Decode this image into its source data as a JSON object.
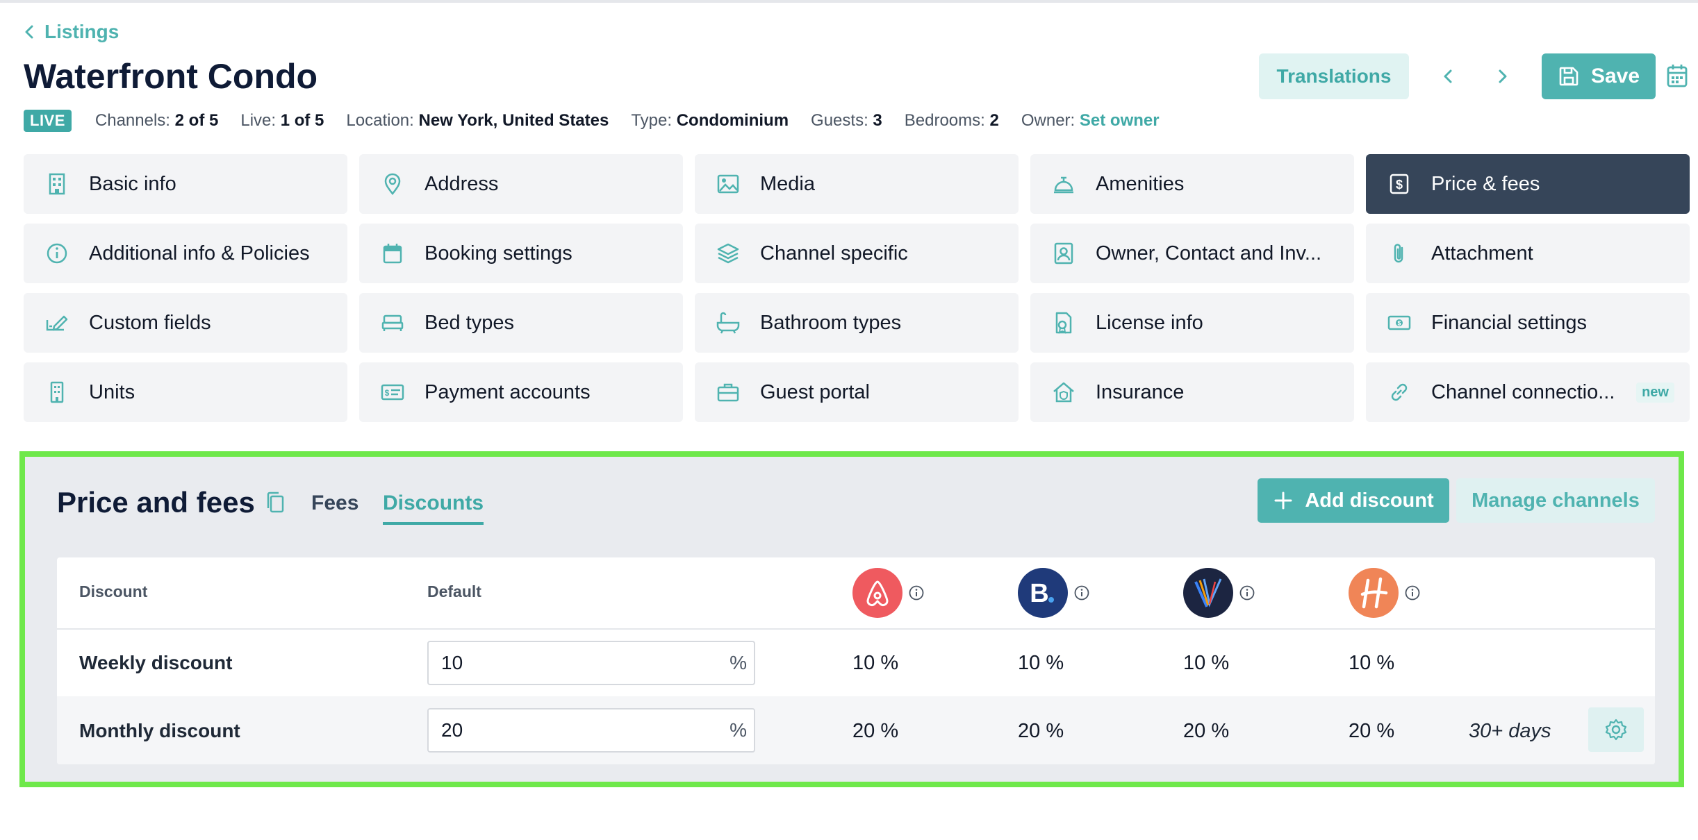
{
  "breadcrumb": {
    "back_label": "Listings"
  },
  "listing": {
    "title": "Waterfront Condo"
  },
  "meta": {
    "status_badge": "LIVE",
    "channels_label": "Channels:",
    "channels_value": "2 of 5",
    "live_label": "Live:",
    "live_value": "1 of 5",
    "location_label": "Location:",
    "location_value": "New York, United States",
    "type_label": "Type:",
    "type_value": "Condominium",
    "guests_label": "Guests:",
    "guests_value": "3",
    "bedrooms_label": "Bedrooms:",
    "bedrooms_value": "2",
    "owner_label": "Owner:",
    "owner_value": "Set owner"
  },
  "header_actions": {
    "translations_label": "Translations",
    "save_label": "Save"
  },
  "tiles": [
    {
      "label": "Basic info",
      "icon": "building-icon"
    },
    {
      "label": "Address",
      "icon": "map-pin-icon"
    },
    {
      "label": "Media",
      "icon": "image-icon"
    },
    {
      "label": "Amenities",
      "icon": "bell-icon"
    },
    {
      "label": "Price & fees",
      "icon": "dollar-icon"
    },
    {
      "label": "Additional info & Policies",
      "icon": "info-icon"
    },
    {
      "label": "Booking settings",
      "icon": "calendar-icon"
    },
    {
      "label": "Channel specific",
      "icon": "layers-icon"
    },
    {
      "label": "Owner, Contact and Inv...",
      "icon": "contact-icon"
    },
    {
      "label": "Attachment",
      "icon": "paperclip-icon"
    },
    {
      "label": "Custom fields",
      "icon": "edit-field-icon"
    },
    {
      "label": "Bed types",
      "icon": "bed-icon"
    },
    {
      "label": "Bathroom types",
      "icon": "bathtub-icon"
    },
    {
      "label": "License info",
      "icon": "license-icon"
    },
    {
      "label": "Financial settings",
      "icon": "banknote-icon"
    },
    {
      "label": "Units",
      "icon": "units-icon"
    },
    {
      "label": "Payment accounts",
      "icon": "payment-card-icon"
    },
    {
      "label": "Guest portal",
      "icon": "briefcase-icon"
    },
    {
      "label": "Insurance",
      "icon": "home-shield-icon"
    },
    {
      "label": "Channel connectio...",
      "icon": "link-icon",
      "badge": "new"
    }
  ],
  "panel": {
    "title": "Price and fees",
    "tabs": {
      "fees": "Fees",
      "discounts": "Discounts"
    },
    "add_discount_label": "Add discount",
    "manage_channels_label": "Manage channels",
    "table": {
      "headers": {
        "discount": "Discount",
        "default": "Default"
      },
      "channels": [
        {
          "name": "airbnb",
          "color": "#ef5a5f"
        },
        {
          "name": "booking",
          "color": "#1f3a7a"
        },
        {
          "name": "vrbo",
          "color": "#1c2541"
        },
        {
          "name": "hostfully",
          "color": "#f08557"
        }
      ],
      "rows": [
        {
          "label": "Weekly discount",
          "default": "10",
          "unit": "%",
          "values": [
            "10 %",
            "10 %",
            "10 %",
            "10 %"
          ]
        },
        {
          "label": "Monthly discount",
          "default": "20",
          "unit": "%",
          "values": [
            "20 %",
            "20 %",
            "20 %",
            "20 %"
          ],
          "days": "30+ days"
        }
      ]
    }
  },
  "colors": {
    "accent": "#4fb3b0",
    "active_tile": "#364559",
    "highlight_border": "#6ee84a"
  }
}
